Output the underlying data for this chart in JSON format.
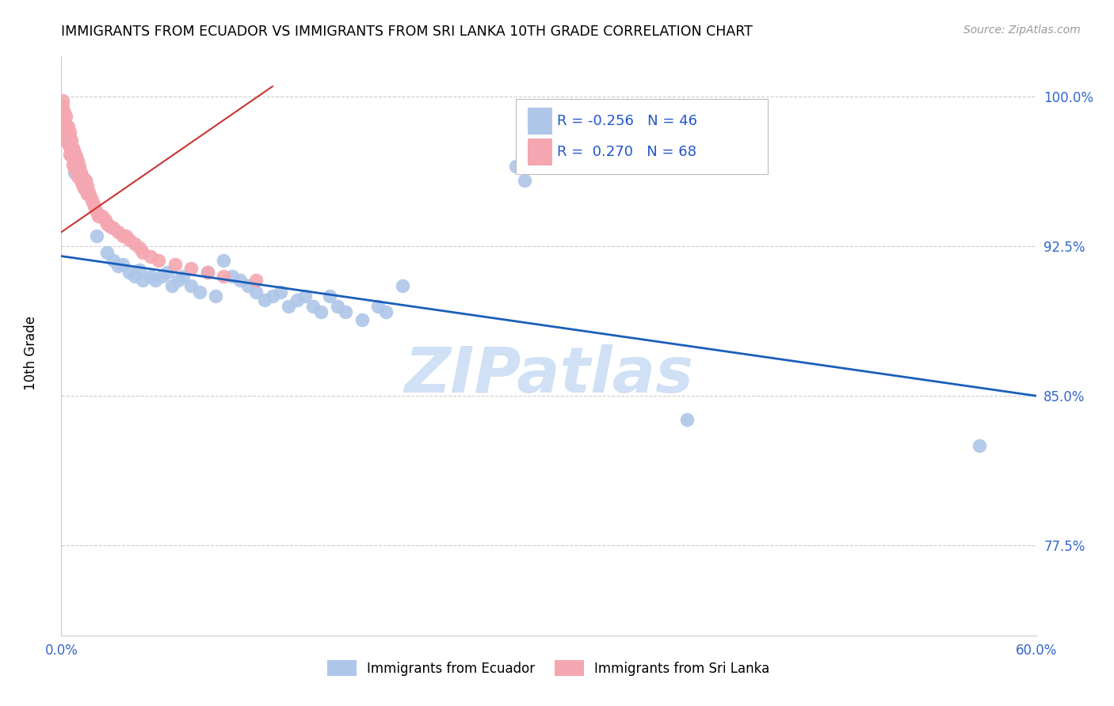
{
  "title": "IMMIGRANTS FROM ECUADOR VS IMMIGRANTS FROM SRI LANKA 10TH GRADE CORRELATION CHART",
  "source": "Source: ZipAtlas.com",
  "ylabel": "10th Grade",
  "xlim": [
    0.0,
    0.6
  ],
  "ylim": [
    0.73,
    1.02
  ],
  "xticks": [
    0.0,
    0.1,
    0.2,
    0.3,
    0.4,
    0.5,
    0.6
  ],
  "xticklabels": [
    "0.0%",
    "",
    "",
    "",
    "",
    "",
    "60.0%"
  ],
  "yticks": [
    0.775,
    0.85,
    0.925,
    1.0
  ],
  "yticklabels": [
    "77.5%",
    "85.0%",
    "92.5%",
    "100.0%"
  ],
  "ecuador_color": "#aec6e8",
  "srilanka_color": "#f4a7b0",
  "ecuador_line_color": "#1a5fba",
  "srilanka_line_color": "#cc3333",
  "legend_R_ecuador": "-0.256",
  "legend_N_ecuador": "46",
  "legend_R_srilanka": "0.270",
  "legend_N_srilanka": "68",
  "watermark": "ZIPatlas",
  "watermark_color": "#d0e0f5",
  "ecuador_points_x": [
    0.008,
    0.015,
    0.022,
    0.028,
    0.032,
    0.035,
    0.038,
    0.042,
    0.045,
    0.048,
    0.05,
    0.055,
    0.058,
    0.062,
    0.065,
    0.068,
    0.072,
    0.075,
    0.08,
    0.085,
    0.09,
    0.095,
    0.1,
    0.105,
    0.11,
    0.115,
    0.12,
    0.125,
    0.13,
    0.135,
    0.14,
    0.145,
    0.15,
    0.155,
    0.16,
    0.165,
    0.17,
    0.175,
    0.185,
    0.195,
    0.2,
    0.21,
    0.28,
    0.285,
    0.385,
    0.565
  ],
  "ecuador_points_y": [
    0.962,
    0.958,
    0.93,
    0.922,
    0.918,
    0.915,
    0.916,
    0.912,
    0.91,
    0.913,
    0.908,
    0.91,
    0.908,
    0.91,
    0.912,
    0.905,
    0.908,
    0.91,
    0.905,
    0.902,
    0.912,
    0.9,
    0.918,
    0.91,
    0.908,
    0.905,
    0.902,
    0.898,
    0.9,
    0.902,
    0.895,
    0.898,
    0.9,
    0.895,
    0.892,
    0.9,
    0.895,
    0.892,
    0.888,
    0.895,
    0.892,
    0.905,
    0.965,
    0.958,
    0.838,
    0.825
  ],
  "srilanka_points_x": [
    0.001,
    0.001,
    0.002,
    0.002,
    0.002,
    0.003,
    0.003,
    0.003,
    0.003,
    0.004,
    0.004,
    0.004,
    0.005,
    0.005,
    0.005,
    0.005,
    0.006,
    0.006,
    0.006,
    0.007,
    0.007,
    0.007,
    0.008,
    0.008,
    0.008,
    0.009,
    0.009,
    0.01,
    0.01,
    0.01,
    0.011,
    0.011,
    0.012,
    0.012,
    0.013,
    0.013,
    0.014,
    0.014,
    0.015,
    0.015,
    0.016,
    0.016,
    0.017,
    0.018,
    0.019,
    0.02,
    0.021,
    0.022,
    0.023,
    0.025,
    0.027,
    0.028,
    0.03,
    0.032,
    0.035,
    0.038,
    0.04,
    0.042,
    0.045,
    0.048,
    0.05,
    0.055,
    0.06,
    0.07,
    0.08,
    0.09,
    0.1,
    0.12
  ],
  "srilanka_points_y": [
    0.998,
    0.995,
    0.992,
    0.988,
    0.985,
    0.99,
    0.986,
    0.982,
    0.978,
    0.985,
    0.98,
    0.976,
    0.982,
    0.978,
    0.975,
    0.971,
    0.978,
    0.974,
    0.97,
    0.974,
    0.97,
    0.966,
    0.972,
    0.968,
    0.964,
    0.97,
    0.966,
    0.968,
    0.964,
    0.96,
    0.965,
    0.961,
    0.962,
    0.958,
    0.96,
    0.956,
    0.958,
    0.954,
    0.958,
    0.954,
    0.955,
    0.951,
    0.952,
    0.95,
    0.948,
    0.946,
    0.944,
    0.942,
    0.94,
    0.94,
    0.938,
    0.936,
    0.935,
    0.934,
    0.932,
    0.93,
    0.93,
    0.928,
    0.926,
    0.924,
    0.922,
    0.92,
    0.918,
    0.916,
    0.914,
    0.912,
    0.91,
    0.908
  ],
  "ecuador_line_x": [
    0.0,
    0.6
  ],
  "ecuador_line_y": [
    0.92,
    0.85
  ],
  "srilanka_line_x": [
    0.0,
    0.13
  ],
  "srilanka_line_y": [
    0.932,
    1.005
  ]
}
